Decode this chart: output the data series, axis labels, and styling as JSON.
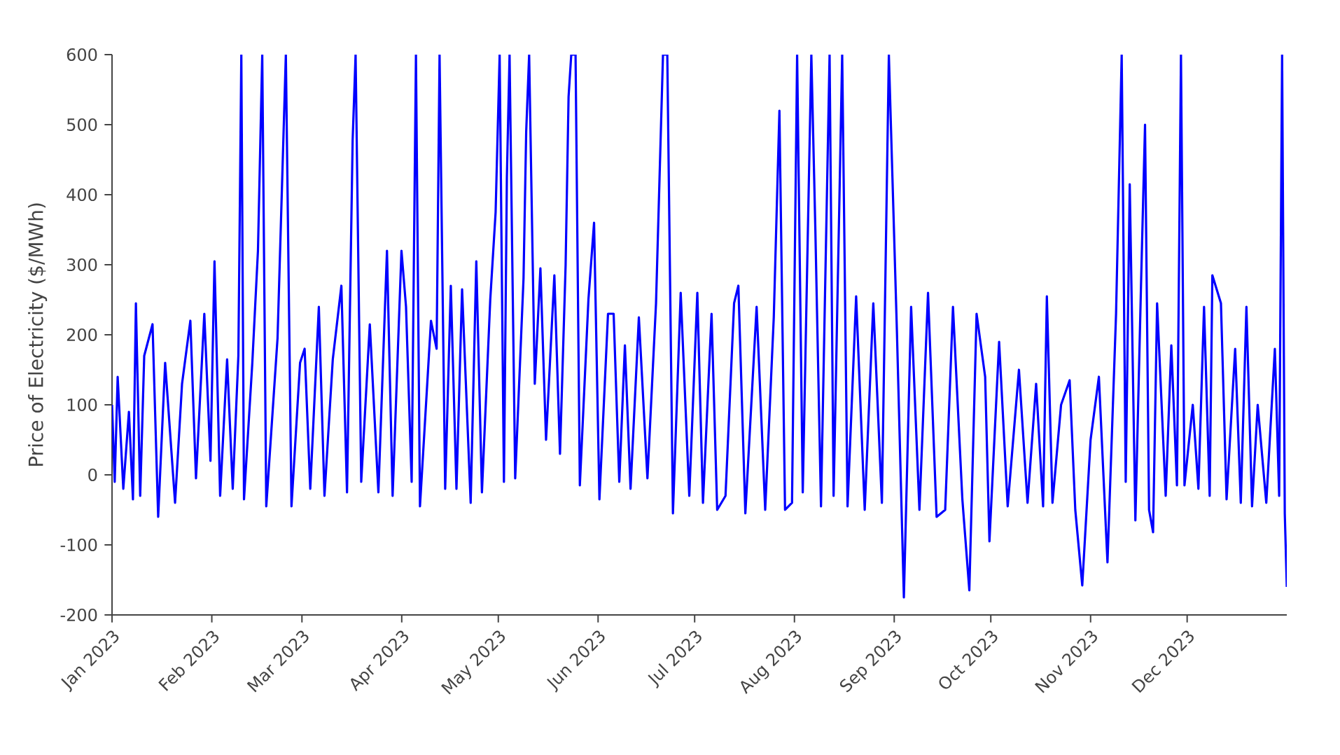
{
  "chart_data": {
    "type": "line",
    "ylabel": "Price of Electricity ($/MWh)",
    "color": "#0000ff",
    "x": [
      "2023-01-01T00:00",
      "2023-01-01T20:00",
      "2023-01-02T18:00",
      "2023-01-04T12:00",
      "2023-01-06T06:00",
      "2023-01-07T12:00",
      "2023-01-08T10:00",
      "2023-01-09T18:00",
      "2023-01-11T00:00",
      "2023-01-13T14:00",
      "2023-01-15T08:00",
      "2023-01-17T12:00",
      "2023-01-20T14:00",
      "2023-01-22T18:00",
      "2023-01-25T08:00",
      "2023-01-27T02:00",
      "2023-01-29T16:00",
      "2023-01-31T14:00",
      "2023-02-01T20:00",
      "2023-02-03T14:00",
      "2023-02-05T18:00",
      "2023-02-07T12:00",
      "2023-02-09T06:00",
      "2023-02-10T04:00",
      "2023-02-11T00:00",
      "2023-02-13T14:00",
      "2023-02-15T08:00",
      "2023-02-16T16:00",
      "2023-02-17T22:00",
      "2023-02-21T10:00",
      "2023-02-24T00:00",
      "2023-02-25T18:00",
      "2023-02-28T10:00",
      "2023-03-01T20:00",
      "2023-03-03T14:00",
      "2023-03-06T06:00",
      "2023-03-08T00:00",
      "2023-03-10T14:00",
      "2023-03-13T06:00",
      "2023-03-15T00:00",
      "2023-03-16T18:00",
      "2023-03-17T16:00",
      "2023-03-19T10:00",
      "2023-03-22T02:00",
      "2023-03-24T18:00",
      "2023-03-27T10:00",
      "2023-03-29T04:00",
      "2023-03-31T22:00",
      "2023-04-02T08:00",
      "2023-04-04T02:00",
      "2023-04-05T10:00",
      "2023-04-06T16:00",
      "2023-04-10T02:00",
      "2023-04-11T20:00",
      "2023-04-12T18:00",
      "2023-04-14T12:00",
      "2023-04-16T06:00",
      "2023-04-18T00:00",
      "2023-04-19T18:00",
      "2023-04-22T10:00",
      "2023-04-24T04:00",
      "2023-04-25T22:00",
      "2023-04-28T12:00",
      "2023-04-30T04:00",
      "2023-05-01T10:00",
      "2023-05-02T18:00",
      "2023-05-03T16:00",
      "2023-05-04T12:00",
      "2023-05-06T06:00",
      "2023-05-08T20:00",
      "2023-05-09T16:00",
      "2023-05-10T14:00",
      "2023-05-12T08:00",
      "2023-05-14T02:00",
      "2023-05-15T20:00",
      "2023-05-18T10:00",
      "2023-05-20T04:00",
      "2023-05-21T22:00",
      "2023-05-22T20:00",
      "2023-05-23T16:00",
      "2023-05-25T00:00",
      "2023-05-26T08:00",
      "2023-05-29T00:00",
      "2023-05-30T18:00",
      "2023-06-01T10:00",
      "2023-06-04T02:00",
      "2023-06-05T20:00",
      "2023-06-07T14:00",
      "2023-06-09T08:00",
      "2023-06-11T02:00",
      "2023-06-13T16:00",
      "2023-06-16T08:00",
      "2023-06-19T00:00",
      "2023-06-21T04:00",
      "2023-06-22T12:00",
      "2023-06-24T06:00",
      "2023-06-26T16:00",
      "2023-06-29T08:00",
      "2023-07-01T20:00",
      "2023-07-03T14:00",
      "2023-07-06T06:00",
      "2023-07-08T00:00",
      "2023-07-10T14:00",
      "2023-07-13T06:00",
      "2023-07-14T14:00",
      "2023-07-16T18:00",
      "2023-07-20T06:00",
      "2023-07-22T22:00",
      "2023-07-25T14:00",
      "2023-07-27T08:00",
      "2023-07-29T02:00",
      "2023-07-31T06:00",
      "2023-08-01T20:00",
      "2023-08-03T14:00",
      "2023-08-06T06:00",
      "2023-08-07T12:00",
      "2023-08-09T06:00",
      "2023-08-11T22:00",
      "2023-08-13T04:00",
      "2023-08-14T22:00",
      "2023-08-15T20:00",
      "2023-08-17T12:00",
      "2023-08-20T04:00",
      "2023-08-22T20:00",
      "2023-08-25T12:00",
      "2023-08-28T04:00",
      "2023-08-30T08:00",
      "2023-09-01T20:00",
      "2023-09-04T00:00",
      "2023-09-06T06:00",
      "2023-09-08T20:00",
      "2023-09-11T12:00",
      "2023-09-14T04:00",
      "2023-09-16T20:00",
      "2023-09-19T06:00",
      "2023-09-22T04:00",
      "2023-09-24T08:00",
      "2023-09-26T14:00",
      "2023-09-29T06:00",
      "2023-09-30T14:00",
      "2023-10-03T14:00",
      "2023-10-06T06:00",
      "2023-10-09T18:00",
      "2023-10-12T10:00",
      "2023-10-15T02:00",
      "2023-10-17T06:00",
      "2023-10-18T10:00",
      "2023-10-20T04:00",
      "2023-10-22T20:00",
      "2023-10-25T12:00",
      "2023-10-27T06:00",
      "2023-10-29T10:00",
      "2023-11-01T00:00",
      "2023-11-03T14:00",
      "2023-11-06T06:00",
      "2023-11-08T22:00",
      "2023-11-10T16:00",
      "2023-11-11T22:00",
      "2023-11-13T04:00",
      "2023-11-14T22:00",
      "2023-11-16T16:00",
      "2023-11-17T22:00",
      "2023-11-19T04:00",
      "2023-11-20T10:00",
      "2023-11-21T16:00",
      "2023-11-24T08:00",
      "2023-11-26T02:00",
      "2023-11-27T20:00",
      "2023-11-29T02:00",
      "2023-11-30T04:00",
      "2023-12-02T18:00",
      "2023-12-04T12:00",
      "2023-12-06T06:00",
      "2023-12-08T00:00",
      "2023-12-08T20:00",
      "2023-12-11T12:00",
      "2023-12-13T06:00",
      "2023-12-15T22:00",
      "2023-12-17T16:00",
      "2023-12-19T10:00",
      "2023-12-21T04:00",
      "2023-12-22T22:00",
      "2023-12-25T14:00",
      "2023-12-28T06:00",
      "2023-12-29T14:00",
      "2023-12-30T12:00",
      "2023-12-31T08:00",
      "2023-12-31T23:00"
    ],
    "values": [
      100,
      -10,
      140,
      -20,
      90,
      -35,
      245,
      -30,
      170,
      215,
      -60,
      160,
      -40,
      130,
      220,
      -5,
      230,
      20,
      305,
      -30,
      165,
      -20,
      170,
      600,
      -35,
      160,
      320,
      600,
      -45,
      195,
      600,
      -45,
      160,
      180,
      -20,
      240,
      -30,
      165,
      270,
      -25,
      478,
      600,
      -10,
      215,
      -25,
      320,
      -30,
      320,
      240,
      -10,
      600,
      -45,
      220,
      180,
      600,
      -20,
      270,
      -20,
      265,
      -40,
      305,
      -25,
      250,
      375,
      600,
      -10,
      425,
      600,
      -5,
      280,
      490,
      600,
      130,
      295,
      50,
      285,
      30,
      300,
      540,
      600,
      600,
      -15,
      250,
      360,
      -35,
      230,
      230,
      -10,
      185,
      -20,
      225,
      -5,
      245,
      600,
      600,
      -55,
      260,
      -30,
      260,
      -40,
      230,
      -50,
      -30,
      245,
      270,
      -55,
      240,
      -50,
      225,
      520,
      -50,
      -40,
      600,
      -25,
      600,
      350,
      -45,
      600,
      -30,
      380,
      600,
      -45,
      255,
      -50,
      245,
      -40,
      600,
      205,
      -175,
      240,
      -50,
      260,
      -60,
      -50,
      240,
      -35,
      -165,
      230,
      140,
      -95,
      190,
      -45,
      150,
      -40,
      130,
      -45,
      255,
      -40,
      100,
      135,
      -50,
      -158,
      50,
      140,
      -125,
      230,
      600,
      -10,
      415,
      -65,
      270,
      500,
      -50,
      -82,
      245,
      -30,
      185,
      -15,
      600,
      -15,
      100,
      -20,
      240,
      -30,
      285,
      245,
      -35,
      180,
      -40,
      240,
      -45,
      100,
      -40,
      180,
      -30,
      600,
      -55,
      -160
    ],
    "xlim": [
      "2023-01-01T00:00",
      "2023-12-31T23:00"
    ],
    "xticks": [
      {
        "value": "2023-01-01",
        "label": "Jan 2023"
      },
      {
        "value": "2023-02-01",
        "label": "Feb 2023"
      },
      {
        "value": "2023-03-01",
        "label": "Mar 2023"
      },
      {
        "value": "2023-04-01",
        "label": "Apr 2023"
      },
      {
        "value": "2023-05-01",
        "label": "May 2023"
      },
      {
        "value": "2023-06-01",
        "label": "Jun 2023"
      },
      {
        "value": "2023-07-01",
        "label": "Jul 2023"
      },
      {
        "value": "2023-08-01",
        "label": "Aug 2023"
      },
      {
        "value": "2023-09-01",
        "label": "Sep 2023"
      },
      {
        "value": "2023-10-01",
        "label": "Oct 2023"
      },
      {
        "value": "2023-11-01",
        "label": "Nov 2023"
      },
      {
        "value": "2023-12-01",
        "label": "Dec 2023"
      }
    ],
    "ylim": [
      -200,
      600
    ],
    "yticks": [
      -200,
      -100,
      0,
      100,
      200,
      300,
      400,
      500,
      600
    ]
  }
}
